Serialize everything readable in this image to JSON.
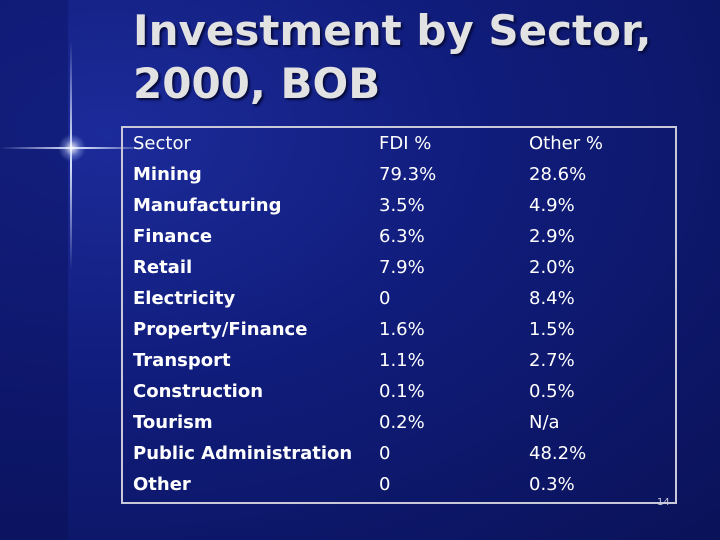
{
  "slide": {
    "title_line1": "Investment by Sector,",
    "title_line2": "2000, BOB",
    "page_number": "14"
  },
  "table": {
    "headers": [
      "Sector",
      "FDI %",
      "Other %"
    ],
    "rows": [
      [
        "Mining",
        "79.3%",
        "28.6%"
      ],
      [
        "Manufacturing",
        "3.5%",
        "4.9%"
      ],
      [
        "Finance",
        "6.3%",
        "2.9%"
      ],
      [
        "Retail",
        "7.9%",
        "2.0%"
      ],
      [
        "Electricity",
        "0",
        "8.4%"
      ],
      [
        "Property/Finance",
        "1.6%",
        "1.5%"
      ],
      [
        "Transport",
        "1.1%",
        "2.7%"
      ],
      [
        "Construction",
        "0.1%",
        "0.5%"
      ],
      [
        "Tourism",
        "0.2%",
        "N/a"
      ],
      [
        "Public Administration",
        "0",
        "48.2%"
      ],
      [
        "Other",
        "0",
        "0.3%"
      ]
    ]
  }
}
